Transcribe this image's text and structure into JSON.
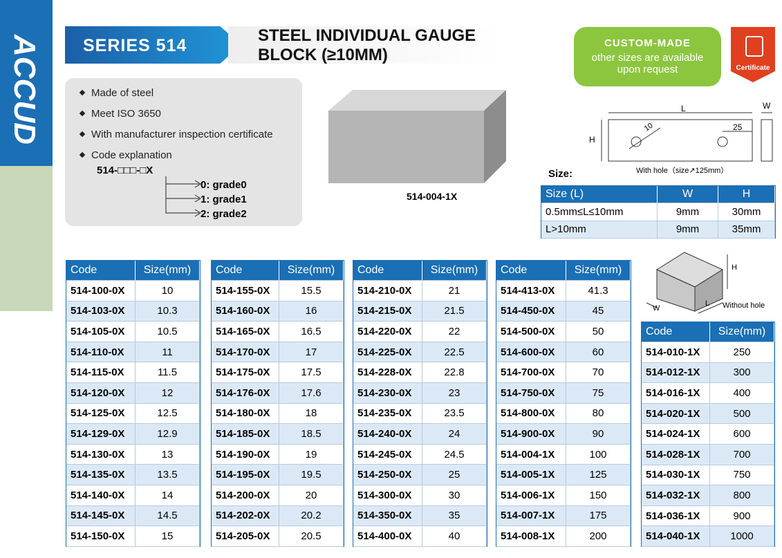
{
  "brand": "ACCUD",
  "header": {
    "series": "SERIES 514",
    "title_line1": "STEEL INDIVIDUAL GAUGE",
    "title_line2": "BLOCK (≥10MM)"
  },
  "custom": {
    "title": "CUSTOM-MADE",
    "line1": "other sizes are available",
    "line2": "upon request"
  },
  "certificate": "Certificate",
  "features": [
    "Made of steel",
    "Meet ISO 3650",
    "With manufacturer inspection certificate",
    "Code explanation"
  ],
  "code_pattern": "514-□□□-□X",
  "grades": [
    "0: grade0",
    "1: grade1",
    "2: grade2"
  ],
  "image_caption": "514-004-1X",
  "diagram_hole": {
    "L": "L",
    "W": "W",
    "H": "H",
    "hole": "10",
    "offset": "25",
    "caption": "With hole（size↗125mm）"
  },
  "size_label": "Size:",
  "size_table": {
    "header": [
      "Size (L)",
      "W",
      "H"
    ],
    "rows": [
      [
        "0.5mm≤L≤10mm",
        "9mm",
        "30mm"
      ],
      [
        "L>10mm",
        "9mm",
        "35mm"
      ]
    ]
  },
  "diagram_plain": {
    "H": "H",
    "W": "W",
    "L": "L",
    "caption": "Without hole"
  },
  "tables": [
    {
      "header": [
        "Code",
        "Size(mm)"
      ],
      "rows": [
        [
          "514-100-0X",
          10
        ],
        [
          "514-103-0X",
          10.3
        ],
        [
          "514-105-0X",
          10.5
        ],
        [
          "514-110-0X",
          11
        ],
        [
          "514-115-0X",
          11.5
        ],
        [
          "514-120-0X",
          12
        ],
        [
          "514-125-0X",
          12.5
        ],
        [
          "514-129-0X",
          12.9
        ],
        [
          "514-130-0X",
          13
        ],
        [
          "514-135-0X",
          13.5
        ],
        [
          "514-140-0X",
          14
        ],
        [
          "514-145-0X",
          14.5
        ],
        [
          "514-150-0X",
          15
        ]
      ]
    },
    {
      "header": [
        "Code",
        "Size(mm)"
      ],
      "rows": [
        [
          "514-155-0X",
          15.5
        ],
        [
          "514-160-0X",
          16
        ],
        [
          "514-165-0X",
          16.5
        ],
        [
          "514-170-0X",
          17
        ],
        [
          "514-175-0X",
          17.5
        ],
        [
          "514-176-0X",
          17.6
        ],
        [
          "514-180-0X",
          18
        ],
        [
          "514-185-0X",
          18.5
        ],
        [
          "514-190-0X",
          19
        ],
        [
          "514-195-0X",
          19.5
        ],
        [
          "514-200-0X",
          20
        ],
        [
          "514-202-0X",
          20.2
        ],
        [
          "514-205-0X",
          20.5
        ]
      ]
    },
    {
      "header": [
        "Code",
        "Size(mm)"
      ],
      "rows": [
        [
          "514-210-0X",
          21
        ],
        [
          "514-215-0X",
          21.5
        ],
        [
          "514-220-0X",
          22
        ],
        [
          "514-225-0X",
          22.5
        ],
        [
          "514-228-0X",
          22.8
        ],
        [
          "514-230-0X",
          23
        ],
        [
          "514-235-0X",
          23.5
        ],
        [
          "514-240-0X",
          24
        ],
        [
          "514-245-0X",
          24.5
        ],
        [
          "514-250-0X",
          25
        ],
        [
          "514-300-0X",
          30
        ],
        [
          "514-350-0X",
          35
        ],
        [
          "514-400-0X",
          40
        ]
      ]
    },
    {
      "header": [
        "Code",
        "Size(mm)"
      ],
      "rows": [
        [
          "514-413-0X",
          41.3
        ],
        [
          "514-450-0X",
          45
        ],
        [
          "514-500-0X",
          50
        ],
        [
          "514-600-0X",
          60
        ],
        [
          "514-700-0X",
          70
        ],
        [
          "514-750-0X",
          75
        ],
        [
          "514-800-0X",
          80
        ],
        [
          "514-900-0X",
          90
        ],
        [
          "514-004-1X",
          100
        ],
        [
          "514-005-1X",
          125
        ],
        [
          "514-006-1X",
          150
        ],
        [
          "514-007-1X",
          175
        ],
        [
          "514-008-1X",
          200
        ]
      ]
    },
    {
      "header": [
        "Code",
        "Size(mm)"
      ],
      "rows": [
        [
          "514-010-1X",
          250
        ],
        [
          "514-012-1X",
          300
        ],
        [
          "514-016-1X",
          400
        ],
        [
          "514-020-1X",
          500
        ],
        [
          "514-024-1X",
          600
        ],
        [
          "514-028-1X",
          700
        ],
        [
          "514-030-1X",
          750
        ],
        [
          "514-032-1X",
          800
        ],
        [
          "514-036-1X",
          900
        ],
        [
          "514-040-1X",
          1000
        ]
      ]
    }
  ]
}
